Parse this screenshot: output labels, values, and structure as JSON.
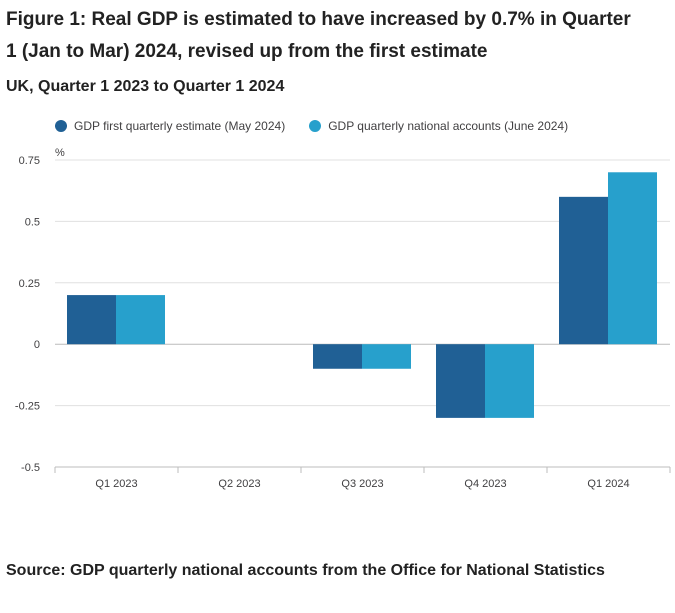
{
  "title": "Figure 1: Real GDP is estimated to have increased by 0.7% in Quarter 1 (Jan to Mar) 2024, revised up from the first estimate",
  "subtitle": "UK, Quarter 1 2023 to Quarter 1 2024",
  "source": "Source: GDP quarterly national accounts from the Office for National Statistics",
  "colors": {
    "series_1": "#206095",
    "series_2": "#27a0cc",
    "gridline": "#e0e0e0",
    "zero_line": "#bcbcbc",
    "tick_text": "#414042"
  },
  "chart_data": {
    "type": "bar",
    "title": "Figure 1: Real GDP is estimated to have increased by 0.7% in Quarter 1 (Jan to Mar) 2024, revised up from the first estimate",
    "subtitle": "UK, Quarter 1 2023 to Quarter 1 2024",
    "xlabel": "",
    "ylabel": "%",
    "ylim": [
      -0.5,
      0.75
    ],
    "yticks": [
      0.75,
      0.5,
      0.25,
      0,
      -0.25,
      -0.5
    ],
    "ytick_labels": [
      "0.75",
      "0.5",
      "0.25",
      "0",
      "-0.25",
      "-0.5"
    ],
    "grid": true,
    "legend_position": "top-left",
    "categories": [
      "Q1 2023",
      "Q2 2023",
      "Q3 2023",
      "Q4 2023",
      "Q1 2024"
    ],
    "series": [
      {
        "name": "GDP first quarterly estimate (May 2024)",
        "color": "#206095",
        "values": [
          0.2,
          0.0,
          -0.1,
          -0.3,
          0.6
        ]
      },
      {
        "name": "GDP quarterly national accounts (June 2024)",
        "color": "#27a0cc",
        "values": [
          0.2,
          0.0,
          -0.1,
          -0.3,
          0.7
        ]
      }
    ]
  }
}
